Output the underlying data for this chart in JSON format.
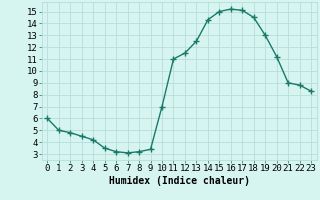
{
  "x": [
    0,
    1,
    2,
    3,
    4,
    5,
    6,
    7,
    8,
    9,
    10,
    11,
    12,
    13,
    14,
    15,
    16,
    17,
    18,
    19,
    20,
    21,
    22,
    23
  ],
  "y": [
    6.0,
    5.0,
    4.8,
    4.5,
    4.2,
    3.5,
    3.2,
    3.1,
    3.2,
    3.4,
    7.0,
    11.0,
    11.5,
    12.5,
    14.3,
    15.0,
    15.2,
    15.1,
    14.5,
    13.0,
    11.2,
    9.0,
    8.8,
    8.3
  ],
  "line_color": "#1a7a6a",
  "marker": "+",
  "markersize": 4,
  "linewidth": 1.0,
  "bg_color": "#d6f5f0",
  "grid_color": "#b8ddd8",
  "xlabel": "Humidex (Indice chaleur)",
  "xlabel_fontsize": 7,
  "ylabel_ticks": [
    3,
    4,
    5,
    6,
    7,
    8,
    9,
    10,
    11,
    12,
    13,
    14,
    15
  ],
  "ylim": [
    2.5,
    15.8
  ],
  "xlim": [
    -0.5,
    23.5
  ],
  "xtick_labels": [
    "0",
    "1",
    "2",
    "3",
    "4",
    "5",
    "6",
    "7",
    "8",
    "9",
    "10",
    "11",
    "12",
    "13",
    "14",
    "15",
    "16",
    "17",
    "18",
    "19",
    "20",
    "21",
    "22",
    "23"
  ],
  "tick_fontsize": 6.5
}
